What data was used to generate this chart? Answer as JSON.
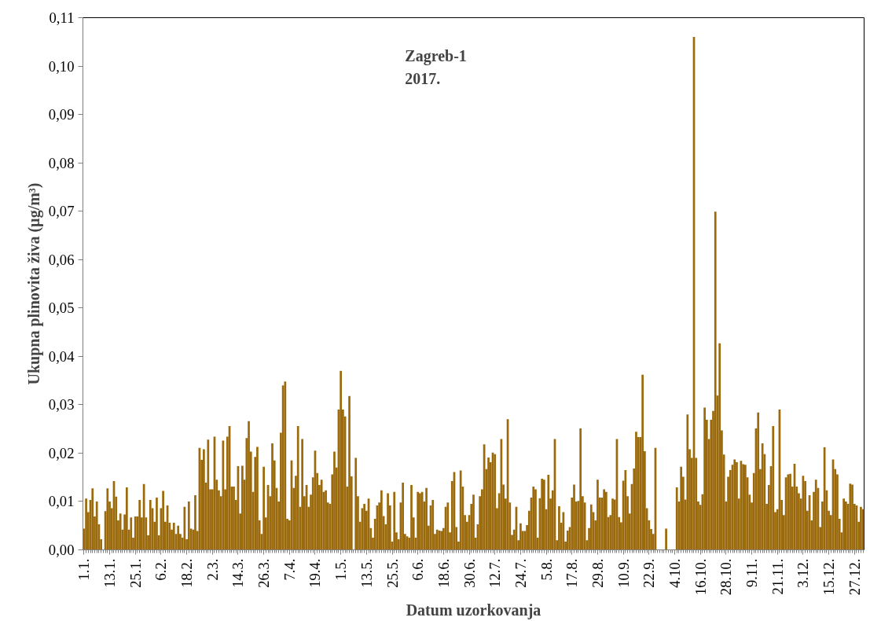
{
  "chart_data": {
    "type": "bar",
    "xlabel": "Datum uzorkovanja",
    "ylabel": "Ukupna plinovita živa (µg/m³)",
    "annotations": [
      "Zagreb-1\n2017."
    ],
    "color": "#9b6a0c",
    "ylim": [
      0,
      0.11
    ],
    "yticks": [
      {
        "value": 0,
        "label": "0,00"
      },
      {
        "value": 0.01,
        "label": "0,01"
      },
      {
        "value": 0.02,
        "label": "0,02"
      },
      {
        "value": 0.03,
        "label": "0,03"
      },
      {
        "value": 0.04,
        "label": "0,04"
      },
      {
        "value": 0.05,
        "label": "0,05"
      },
      {
        "value": 0.06,
        "label": "0,06"
      },
      {
        "value": 0.07,
        "label": "0,07"
      },
      {
        "value": 0.08,
        "label": "0,08"
      },
      {
        "value": 0.09,
        "label": "0,09"
      },
      {
        "value": 0.1,
        "label": "0,10"
      },
      {
        "value": 0.11,
        "label": "0,11"
      }
    ],
    "grid": false,
    "categories": [
      "1.1.",
      null,
      null,
      null,
      null,
      null,
      null,
      null,
      null,
      null,
      null,
      null,
      "13.1.",
      null,
      null,
      null,
      null,
      null,
      null,
      null,
      null,
      null,
      null,
      null,
      "25.1.",
      null,
      null,
      null,
      null,
      null,
      null,
      null,
      null,
      null,
      null,
      null,
      "6.2.",
      null,
      null,
      null,
      null,
      null,
      null,
      null,
      null,
      null,
      null,
      null,
      "18.2.",
      null,
      null,
      null,
      null,
      null,
      null,
      null,
      null,
      null,
      null,
      null,
      "2.3.",
      null,
      null,
      null,
      null,
      null,
      null,
      null,
      null,
      null,
      null,
      null,
      "14.3.",
      null,
      null,
      null,
      null,
      null,
      null,
      null,
      null,
      null,
      null,
      null,
      "26.3.",
      null,
      null,
      null,
      null,
      null,
      null,
      null,
      null,
      null,
      null,
      null,
      "7.4.",
      null,
      null,
      null,
      null,
      null,
      null,
      null,
      null,
      null,
      null,
      null,
      "19.4.",
      null,
      null,
      null,
      null,
      null,
      null,
      null,
      null,
      null,
      null,
      null,
      "1.5.",
      null,
      null,
      null,
      null,
      null,
      null,
      null,
      null,
      null,
      null,
      null,
      "13.5.",
      null,
      null,
      null,
      null,
      null,
      null,
      null,
      null,
      null,
      null,
      null,
      "25.5.",
      null,
      null,
      null,
      null,
      null,
      null,
      null,
      null,
      null,
      null,
      null,
      "6.6.",
      null,
      null,
      null,
      null,
      null,
      null,
      null,
      null,
      null,
      null,
      null,
      "18.6.",
      null,
      null,
      null,
      null,
      null,
      null,
      null,
      null,
      null,
      null,
      null,
      "30.6.",
      null,
      null,
      null,
      null,
      null,
      null,
      null,
      null,
      null,
      null,
      null,
      "12.7.",
      null,
      null,
      null,
      null,
      null,
      null,
      null,
      null,
      null,
      null,
      null,
      "24.7.",
      null,
      null,
      null,
      null,
      null,
      null,
      null,
      null,
      null,
      null,
      null,
      "5.8.",
      null,
      null,
      null,
      null,
      null,
      null,
      null,
      null,
      null,
      null,
      null,
      "17.8.",
      null,
      null,
      null,
      null,
      null,
      null,
      null,
      null,
      null,
      null,
      null,
      "29.8.",
      null,
      null,
      null,
      null,
      null,
      null,
      null,
      null,
      null,
      null,
      null,
      "10.9.",
      null,
      null,
      null,
      null,
      null,
      null,
      null,
      null,
      null,
      null,
      null,
      "22.9.",
      null,
      null,
      null,
      null,
      null,
      null,
      null,
      null,
      null,
      null,
      null,
      "4.10.",
      null,
      null,
      null,
      null,
      null,
      null,
      null,
      null,
      null,
      null,
      null,
      "16.10.",
      null,
      null,
      null,
      null,
      null,
      null,
      null,
      null,
      null,
      null,
      null,
      "28.10.",
      null,
      null,
      null,
      null,
      null,
      null,
      null,
      null,
      null,
      null,
      null,
      "9.11.",
      null,
      null,
      null,
      null,
      null,
      null,
      null,
      null,
      null,
      null,
      null,
      "21.11.",
      null,
      null,
      null,
      null,
      null,
      null,
      null,
      null,
      null,
      null,
      null,
      "3.12.",
      null,
      null,
      null,
      null,
      null,
      null,
      null,
      null,
      null,
      null,
      null,
      "15.12.",
      null,
      null,
      null,
      null,
      null,
      null,
      null,
      null,
      null,
      null,
      null,
      "27.12.",
      null,
      null,
      null,
      null
    ],
    "values": [
      0.0044,
      0.0106,
      0.0078,
      0.0103,
      0.0127,
      0.0069,
      0.01,
      0.0053,
      0.0022,
      null,
      0.008,
      0.0127,
      0.01,
      0.0086,
      0.0142,
      0.011,
      0.0061,
      0.0075,
      0.0042,
      0.0073,
      0.0129,
      0.0042,
      0.0067,
      0.0025,
      0.0069,
      0.0069,
      0.0103,
      0.0067,
      0.0136,
      0.0067,
      0.003,
      0.0103,
      0.0086,
      0.0058,
      0.0108,
      0.003,
      0.0086,
      0.0122,
      0.0058,
      0.0092,
      0.0056,
      0.0042,
      0.0056,
      0.0033,
      0.005,
      0.0033,
      0.0025,
      0.0089,
      0.0022,
      0.01,
      0.0044,
      0.0042,
      0.0113,
      0.0039,
      0.0211,
      0.0186,
      0.0208,
      0.0139,
      0.0228,
      0.0125,
      0.0125,
      0.0234,
      0.0145,
      0.0123,
      0.0111,
      0.0226,
      0.0125,
      0.0234,
      0.0256,
      0.0131,
      0.0131,
      0.0103,
      0.0173,
      0.0075,
      0.0174,
      0.0145,
      0.0231,
      0.0266,
      0.0203,
      0.012,
      0.0192,
      0.0213,
      0.0061,
      0.0033,
      0.0172,
      0.0067,
      0.0134,
      0.0111,
      0.022,
      0.0185,
      0.0128,
      0.01,
      0.0242,
      0.034,
      0.0348,
      0.0064,
      0.0061,
      0.0185,
      0.0128,
      0.0153,
      0.0256,
      0.0089,
      0.0229,
      0.0111,
      0.0134,
      0.0089,
      0.0114,
      0.015,
      0.0205,
      0.0159,
      0.0134,
      0.0145,
      0.012,
      0.0123,
      0.0098,
      0.0095,
      0.0156,
      0.0203,
      0.017,
      0.029,
      0.037,
      0.029,
      0.0276,
      0.0131,
      0.0318,
      0.0152,
      null,
      0.019,
      0.0111,
      0.0058,
      0.0086,
      0.0095,
      0.0081,
      0.0106,
      0.0045,
      0.0025,
      0.0064,
      0.0092,
      0.0098,
      0.0123,
      0.007,
      0.0053,
      0.0117,
      0.0092,
      0.0017,
      0.012,
      0.0036,
      0.0022,
      0.0098,
      0.0139,
      0.0033,
      0.0028,
      0.0025,
      0.0134,
      0.0067,
      0.0025,
      0.012,
      0.0117,
      0.012,
      0.01,
      0.0128,
      0.005,
      0.0092,
      0.0103,
      0.0033,
      0.0042,
      0.004,
      0.0039,
      0.0045,
      0.0089,
      0.0098,
      0.0036,
      0.0142,
      0.0161,
      0.0047,
      0.0017,
      0.0164,
      0.0131,
      0.0072,
      0.0058,
      0.0072,
      0.0095,
      0.0114,
      0.0025,
      0.0053,
      0.0111,
      0.0125,
      0.0218,
      0.0167,
      0.0191,
      0.0181,
      0.0201,
      0.0198,
      0.0086,
      0.0117,
      0.0229,
      0.0135,
      0.0106,
      0.027,
      0.0098,
      0.0031,
      0.0042,
      0.0089,
      0.002,
      0.0055,
      0.0039,
      0.0039,
      0.0051,
      0.0081,
      0.0108,
      0.0131,
      0.0125,
      0.0025,
      0.0107,
      0.0147,
      0.0145,
      0.0084,
      0.0155,
      0.0106,
      0.0123,
      0.0229,
      0.002,
      0.009,
      0.0056,
      0.0078,
      0.0017,
      0.004,
      0.0047,
      0.0108,
      0.0135,
      0.01,
      0.0101,
      0.0251,
      0.0111,
      0.0098,
      0.002,
      0.0045,
      0.0094,
      0.0078,
      0.0061,
      0.0145,
      0.0108,
      0.0108,
      0.0125,
      0.012,
      0.0068,
      0.0072,
      0.0106,
      0.0104,
      0.0229,
      0.0068,
      0.0057,
      0.0143,
      0.0165,
      0.0111,
      0.0075,
      0.0136,
      0.0168,
      0.0244,
      0.0233,
      0.0233,
      0.0362,
      0.0204,
      0.0086,
      0.0061,
      0.0043,
      0.0033,
      0.0211,
      null,
      null,
      null,
      null,
      0.0044,
      null,
      null,
      null,
      null,
      0.0129,
      0.01,
      0.0172,
      0.0151,
      0.0104,
      0.028,
      0.0208,
      0.019,
      0.106,
      0.019,
      0.01,
      0.0093,
      0.0115,
      0.0294,
      0.0269,
      0.0229,
      0.0269,
      0.0287,
      0.0699,
      0.0319,
      0.0427,
      0.0247,
      0.0197,
      0.01,
      0.0151,
      0.0165,
      0.0176,
      0.0187,
      0.0181,
      0.0106,
      0.0184,
      0.0177,
      0.0176,
      0.015,
      0.0114,
      0.0098,
      0.0159,
      0.0251,
      0.0284,
      0.0167,
      0.022,
      0.0198,
      0.0095,
      0.0134,
      0.0173,
      0.0256,
      0.0078,
      0.0084,
      0.029,
      0.0103,
      0.0072,
      0.015,
      0.0156,
      0.0157,
      0.0131,
      0.0178,
      0.0131,
      0.0117,
      0.0106,
      0.0153,
      0.0142,
      0.0081,
      0.0113,
      0.0061,
      0.012,
      0.0145,
      0.0128,
      0.0047,
      0.01,
      0.0212,
      0.0123,
      0.0081,
      0.0072,
      0.0187,
      0.0167,
      0.0156,
      0.0064,
      0.0036,
      0.0106,
      0.01,
      0.0095,
      0.0137,
      0.0135,
      0.0095,
      0.0092,
      0.0058,
      0.0089,
      0.0084
    ]
  }
}
